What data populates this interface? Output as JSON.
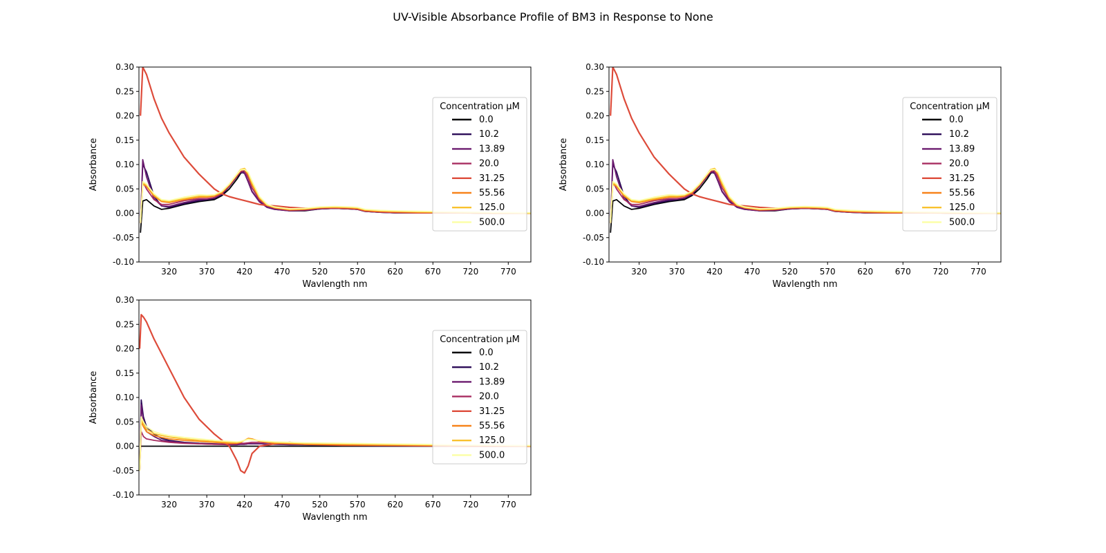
{
  "figure_title": "UV-Visible Absorbance Profile of BM3 in Response to None",
  "series_colors": [
    "#000004",
    "#2b0b57",
    "#6b1a6e",
    "#a82c60",
    "#dd4b3a",
    "#f7831a",
    "#f9c12c",
    "#fcffa4"
  ],
  "chart_data": [
    {
      "type": "line",
      "xlabel": "Wavlength nm",
      "ylabel": "Absorbance",
      "xlim": [
        280,
        800
      ],
      "ylim": [
        -0.1,
        0.3
      ],
      "xticks": [
        320,
        370,
        420,
        470,
        520,
        570,
        620,
        670,
        720,
        770
      ],
      "yticks": [
        -0.1,
        -0.05,
        0.0,
        0.05,
        0.1,
        0.15,
        0.2,
        0.25,
        0.3
      ],
      "grid": false,
      "legend_title": "Concentration µM",
      "legend_position": "center-right",
      "x": [
        282,
        285,
        290,
        300,
        310,
        320,
        340,
        360,
        370,
        380,
        390,
        400,
        410,
        415,
        420,
        425,
        430,
        440,
        450,
        460,
        480,
        500,
        520,
        540,
        560,
        570,
        580,
        600,
        620,
        650,
        700,
        750,
        800
      ],
      "series": [
        {
          "name": "0.0",
          "values": [
            -0.04,
            0.025,
            0.028,
            0.015,
            0.008,
            0.01,
            0.018,
            0.024,
            0.026,
            0.028,
            0.036,
            0.05,
            0.07,
            0.082,
            0.087,
            0.078,
            0.06,
            0.032,
            0.018,
            0.01,
            0.005,
            0.005,
            0.009,
            0.01,
            0.009,
            0.008,
            0.004,
            0.002,
            0.001,
            0.001,
            0.001,
            0.0,
            0.0
          ]
        },
        {
          "name": "10.2",
          "values": [
            -0.02,
            0.1,
            0.085,
            0.035,
            0.015,
            0.012,
            0.02,
            0.026,
            0.028,
            0.03,
            0.038,
            0.055,
            0.075,
            0.084,
            0.082,
            0.065,
            0.045,
            0.024,
            0.012,
            0.008,
            0.005,
            0.006,
            0.009,
            0.01,
            0.009,
            0.008,
            0.004,
            0.002,
            0.001,
            0.001,
            0.001,
            0.0,
            0.0
          ]
        },
        {
          "name": "13.89",
          "values": [
            -0.02,
            0.11,
            0.075,
            0.03,
            0.015,
            0.014,
            0.022,
            0.028,
            0.029,
            0.032,
            0.04,
            0.056,
            0.076,
            0.085,
            0.083,
            0.064,
            0.044,
            0.023,
            0.012,
            0.008,
            0.005,
            0.006,
            0.009,
            0.01,
            0.009,
            0.008,
            0.004,
            0.002,
            0.001,
            0.001,
            0.001,
            0.0,
            0.0
          ]
        },
        {
          "name": "20.0",
          "values": [
            -0.02,
            0.065,
            0.05,
            0.028,
            0.018,
            0.018,
            0.026,
            0.03,
            0.03,
            0.032,
            0.04,
            0.056,
            0.076,
            0.086,
            0.087,
            0.072,
            0.052,
            0.027,
            0.015,
            0.01,
            0.006,
            0.007,
            0.01,
            0.011,
            0.01,
            0.009,
            0.005,
            0.003,
            0.002,
            0.001,
            0.001,
            0.0,
            0.0
          ]
        },
        {
          "name": "31.25",
          "values": [
            0.2,
            0.3,
            0.285,
            0.235,
            0.195,
            0.165,
            0.115,
            0.08,
            0.065,
            0.05,
            0.04,
            0.034,
            0.03,
            0.028,
            0.026,
            0.024,
            0.022,
            0.018,
            0.016,
            0.015,
            0.012,
            0.01,
            0.011,
            0.011,
            0.01,
            0.009,
            0.005,
            0.003,
            0.002,
            0.001,
            0.001,
            0.0,
            0.0
          ]
        },
        {
          "name": "55.56",
          "values": [
            -0.02,
            0.06,
            0.055,
            0.035,
            0.024,
            0.022,
            0.028,
            0.033,
            0.033,
            0.035,
            0.042,
            0.058,
            0.078,
            0.088,
            0.09,
            0.078,
            0.058,
            0.03,
            0.016,
            0.011,
            0.007,
            0.008,
            0.011,
            0.012,
            0.011,
            0.01,
            0.006,
            0.004,
            0.003,
            0.002,
            0.001,
            0.0,
            0.0
          ]
        },
        {
          "name": "125.0",
          "values": [
            -0.02,
            0.062,
            0.058,
            0.038,
            0.026,
            0.024,
            0.03,
            0.035,
            0.035,
            0.037,
            0.044,
            0.06,
            0.08,
            0.09,
            0.092,
            0.082,
            0.062,
            0.032,
            0.017,
            0.012,
            0.008,
            0.009,
            0.012,
            0.013,
            0.012,
            0.011,
            0.007,
            0.005,
            0.004,
            0.003,
            0.002,
            0.001,
            0.0
          ]
        },
        {
          "name": "500.0",
          "values": [
            -0.02,
            0.065,
            0.06,
            0.04,
            0.028,
            0.026,
            0.033,
            0.038,
            0.037,
            0.038,
            0.045,
            0.06,
            0.08,
            0.089,
            0.09,
            0.084,
            0.066,
            0.034,
            0.018,
            0.013,
            0.009,
            0.01,
            0.013,
            0.014,
            0.013,
            0.012,
            0.008,
            0.006,
            0.005,
            0.004,
            0.003,
            0.002,
            0.001
          ]
        }
      ]
    },
    {
      "type": "line",
      "xlabel": "Wavlength nm",
      "ylabel": "Absorbance",
      "xlim": [
        280,
        800
      ],
      "ylim": [
        -0.1,
        0.3
      ],
      "xticks": [
        320,
        370,
        420,
        470,
        520,
        570,
        620,
        670,
        720,
        770
      ],
      "yticks": [
        -0.1,
        -0.05,
        0.0,
        0.05,
        0.1,
        0.15,
        0.2,
        0.25,
        0.3
      ],
      "grid": false,
      "legend_title": "Concentration µM",
      "legend_position": "center-right",
      "x": [
        282,
        285,
        290,
        300,
        310,
        320,
        340,
        360,
        370,
        380,
        390,
        400,
        410,
        415,
        420,
        425,
        430,
        440,
        450,
        460,
        480,
        500,
        520,
        540,
        560,
        570,
        580,
        600,
        620,
        650,
        700,
        750,
        800
      ],
      "series": [
        {
          "name": "0.0",
          "values": [
            -0.04,
            0.025,
            0.028,
            0.015,
            0.008,
            0.01,
            0.018,
            0.024,
            0.026,
            0.028,
            0.036,
            0.05,
            0.07,
            0.082,
            0.087,
            0.078,
            0.06,
            0.032,
            0.018,
            0.01,
            0.005,
            0.005,
            0.009,
            0.01,
            0.009,
            0.008,
            0.004,
            0.002,
            0.001,
            0.001,
            0.001,
            0.0,
            0.0
          ]
        },
        {
          "name": "10.2",
          "values": [
            -0.02,
            0.1,
            0.085,
            0.035,
            0.015,
            0.012,
            0.02,
            0.026,
            0.028,
            0.03,
            0.038,
            0.055,
            0.075,
            0.084,
            0.082,
            0.065,
            0.045,
            0.024,
            0.012,
            0.008,
            0.005,
            0.006,
            0.009,
            0.01,
            0.009,
            0.008,
            0.004,
            0.002,
            0.001,
            0.001,
            0.001,
            0.0,
            0.0
          ]
        },
        {
          "name": "13.89",
          "values": [
            -0.02,
            0.11,
            0.075,
            0.03,
            0.015,
            0.014,
            0.022,
            0.028,
            0.029,
            0.032,
            0.04,
            0.056,
            0.076,
            0.085,
            0.083,
            0.064,
            0.044,
            0.023,
            0.012,
            0.008,
            0.005,
            0.006,
            0.009,
            0.01,
            0.009,
            0.008,
            0.004,
            0.002,
            0.001,
            0.001,
            0.001,
            0.0,
            0.0
          ]
        },
        {
          "name": "20.0",
          "values": [
            -0.02,
            0.065,
            0.05,
            0.028,
            0.018,
            0.018,
            0.026,
            0.03,
            0.03,
            0.032,
            0.04,
            0.056,
            0.076,
            0.086,
            0.087,
            0.072,
            0.052,
            0.027,
            0.015,
            0.01,
            0.006,
            0.007,
            0.01,
            0.011,
            0.01,
            0.009,
            0.005,
            0.003,
            0.002,
            0.001,
            0.001,
            0.0,
            0.0
          ]
        },
        {
          "name": "31.25",
          "values": [
            0.2,
            0.3,
            0.285,
            0.235,
            0.195,
            0.165,
            0.115,
            0.08,
            0.065,
            0.05,
            0.04,
            0.034,
            0.03,
            0.028,
            0.026,
            0.024,
            0.022,
            0.018,
            0.016,
            0.015,
            0.012,
            0.01,
            0.011,
            0.011,
            0.01,
            0.009,
            0.005,
            0.003,
            0.002,
            0.001,
            0.001,
            0.0,
            0.0
          ]
        },
        {
          "name": "55.56",
          "values": [
            -0.02,
            0.06,
            0.055,
            0.035,
            0.024,
            0.022,
            0.028,
            0.033,
            0.033,
            0.035,
            0.042,
            0.058,
            0.078,
            0.088,
            0.09,
            0.078,
            0.058,
            0.03,
            0.016,
            0.011,
            0.007,
            0.008,
            0.011,
            0.012,
            0.011,
            0.01,
            0.006,
            0.004,
            0.003,
            0.002,
            0.001,
            0.0,
            0.0
          ]
        },
        {
          "name": "125.0",
          "values": [
            -0.02,
            0.062,
            0.058,
            0.038,
            0.026,
            0.024,
            0.03,
            0.035,
            0.035,
            0.037,
            0.044,
            0.06,
            0.08,
            0.09,
            0.092,
            0.082,
            0.062,
            0.032,
            0.017,
            0.012,
            0.008,
            0.009,
            0.012,
            0.013,
            0.012,
            0.011,
            0.007,
            0.005,
            0.004,
            0.003,
            0.002,
            0.001,
            0.0
          ]
        },
        {
          "name": "500.0",
          "values": [
            -0.02,
            0.065,
            0.06,
            0.04,
            0.028,
            0.026,
            0.033,
            0.038,
            0.037,
            0.038,
            0.045,
            0.06,
            0.08,
            0.089,
            0.09,
            0.084,
            0.066,
            0.034,
            0.018,
            0.013,
            0.009,
            0.01,
            0.013,
            0.014,
            0.013,
            0.012,
            0.008,
            0.006,
            0.005,
            0.004,
            0.003,
            0.002,
            0.001
          ]
        }
      ]
    },
    {
      "type": "line",
      "xlabel": "Wavlength nm",
      "ylabel": "Absorbance",
      "xlim": [
        280,
        800
      ],
      "ylim": [
        -0.1,
        0.3
      ],
      "xticks": [
        320,
        370,
        420,
        470,
        520,
        570,
        620,
        670,
        720,
        770
      ],
      "yticks": [
        -0.1,
        -0.05,
        0.0,
        0.05,
        0.1,
        0.15,
        0.2,
        0.25,
        0.3
      ],
      "grid": false,
      "legend_title": "Concentration µM",
      "legend_position": "center-right",
      "x": [
        281,
        283,
        286,
        290,
        300,
        310,
        320,
        340,
        360,
        380,
        400,
        410,
        415,
        420,
        425,
        430,
        440,
        460,
        480,
        500,
        550,
        600,
        650,
        700,
        750,
        800
      ],
      "series": [
        {
          "name": "0.0",
          "values": [
            0.0,
            0.0,
            0.0,
            0.0,
            0.0,
            0.0,
            0.0,
            0.0,
            0.0,
            0.0,
            0.0,
            0.0,
            0.0,
            0.0,
            0.0,
            0.0,
            0.0,
            0.0,
            0.0,
            0.0,
            0.0,
            0.0,
            0.0,
            0.0,
            0.0,
            0.0
          ]
        },
        {
          "name": "10.2",
          "values": [
            -0.05,
            0.095,
            0.06,
            0.04,
            0.025,
            0.016,
            0.012,
            0.008,
            0.006,
            0.005,
            0.004,
            0.004,
            0.004,
            0.004,
            0.005,
            0.005,
            0.005,
            0.004,
            0.004,
            0.003,
            0.002,
            0.002,
            0.001,
            0.001,
            0.0,
            0.0
          ]
        },
        {
          "name": "13.89",
          "values": [
            -0.05,
            0.085,
            0.05,
            0.03,
            0.02,
            0.012,
            0.01,
            0.007,
            0.005,
            0.004,
            0.003,
            0.003,
            0.004,
            0.004,
            0.005,
            0.005,
            0.005,
            0.004,
            0.003,
            0.003,
            0.002,
            0.001,
            0.001,
            0.001,
            0.0,
            0.0
          ]
        },
        {
          "name": "20.0",
          "values": [
            -0.05,
            0.03,
            0.02,
            0.015,
            0.012,
            0.01,
            0.008,
            0.006,
            0.005,
            0.004,
            0.004,
            0.005,
            0.006,
            0.006,
            0.007,
            0.008,
            0.008,
            0.007,
            0.006,
            0.004,
            0.003,
            0.002,
            0.001,
            0.001,
            0.0,
            0.0
          ]
        },
        {
          "name": "31.25",
          "values": [
            0.2,
            0.27,
            0.265,
            0.255,
            0.22,
            0.19,
            0.16,
            0.1,
            0.055,
            0.025,
            0.0,
            -0.03,
            -0.05,
            -0.055,
            -0.04,
            -0.015,
            0.0,
            0.005,
            0.008,
            0.004,
            0.002,
            0.002,
            0.001,
            0.0,
            0.0,
            0.0
          ]
        },
        {
          "name": "55.56",
          "values": [
            -0.05,
            0.05,
            0.04,
            0.03,
            0.022,
            0.018,
            0.015,
            0.012,
            0.01,
            0.008,
            0.006,
            0.006,
            0.008,
            0.012,
            0.016,
            0.015,
            0.01,
            0.006,
            0.005,
            0.004,
            0.003,
            0.002,
            0.002,
            0.001,
            0.001,
            0.0
          ]
        },
        {
          "name": "125.0",
          "values": [
            -0.05,
            0.055,
            0.045,
            0.035,
            0.026,
            0.022,
            0.019,
            0.015,
            0.012,
            0.01,
            0.008,
            0.008,
            0.009,
            0.012,
            0.015,
            0.014,
            0.011,
            0.008,
            0.007,
            0.006,
            0.005,
            0.004,
            0.003,
            0.002,
            0.002,
            0.001
          ]
        },
        {
          "name": "500.0",
          "values": [
            -0.05,
            0.06,
            0.05,
            0.04,
            0.03,
            0.025,
            0.022,
            0.018,
            0.015,
            0.012,
            0.01,
            0.009,
            0.01,
            0.012,
            0.014,
            0.013,
            0.011,
            0.009,
            0.008,
            0.007,
            0.006,
            0.005,
            0.004,
            0.003,
            0.002,
            0.001
          ]
        }
      ]
    }
  ]
}
